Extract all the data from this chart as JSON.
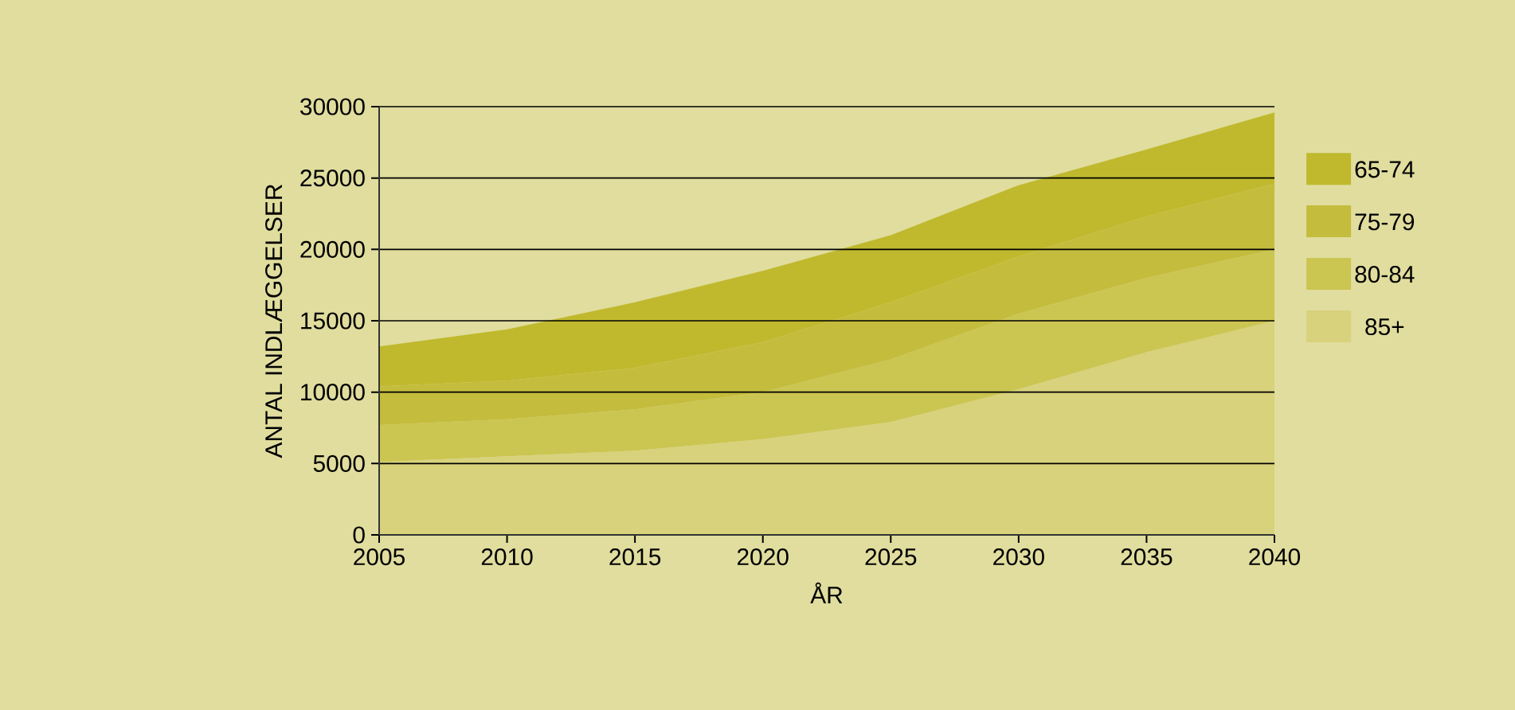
{
  "chart_data": {
    "type": "area",
    "stacked": true,
    "xlabel": "ÅR",
    "ylabel": "ANTAL INDLÆGGELSER",
    "x": [
      2005,
      2010,
      2015,
      2020,
      2025,
      2030,
      2035,
      2040
    ],
    "series": [
      {
        "name": "85+",
        "color": "#d8d27c",
        "values": [
          5100,
          5500,
          5900,
          6700,
          7900,
          10200,
          12800,
          15000
        ]
      },
      {
        "name": "80-84",
        "color": "#cbc552",
        "values": [
          2600,
          2600,
          2900,
          3300,
          4400,
          5300,
          5200,
          5000
        ]
      },
      {
        "name": "75-79",
        "color": "#c4bc3c",
        "values": [
          2700,
          2700,
          2900,
          3500,
          4000,
          4000,
          4300,
          4600
        ]
      },
      {
        "name": "65-74",
        "color": "#c0b92e",
        "values": [
          2800,
          3600,
          4600,
          5000,
          4700,
          5000,
          4700,
          5000
        ]
      }
    ],
    "xlim": [
      2005,
      2040
    ],
    "xticks": [
      2005,
      2010,
      2015,
      2020,
      2025,
      2030,
      2035,
      2040
    ],
    "ylim": [
      0,
      30000
    ],
    "yticks": [
      0,
      5000,
      10000,
      15000,
      20000,
      25000,
      30000
    ],
    "grid": "y",
    "legend": "right"
  }
}
